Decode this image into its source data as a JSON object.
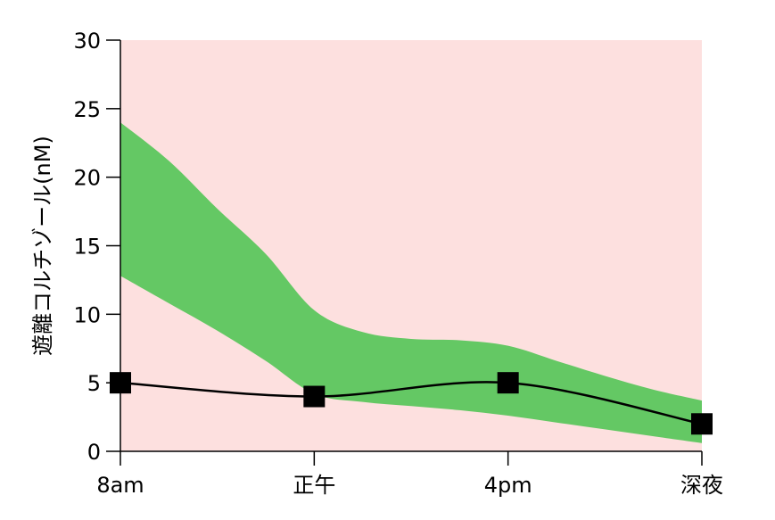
{
  "chart_data": {
    "type": "line",
    "title": "",
    "xlabel": "",
    "ylabel": "遊離コルチゾール(nM)",
    "categories": [
      "8am",
      "正午",
      "4pm",
      "深夜"
    ],
    "ylim": [
      0,
      30
    ],
    "yticks": [
      0,
      5,
      10,
      15,
      20,
      25,
      30
    ],
    "grid": false,
    "series": [
      {
        "values": [
          5,
          4,
          5,
          2
        ],
        "color": "#000000",
        "marker": "square"
      }
    ],
    "band": {
      "x": [
        0,
        0.25,
        0.5,
        0.75,
        1,
        1.25,
        1.5,
        1.75,
        2,
        2.25,
        2.5,
        2.75,
        3
      ],
      "upper": [
        24,
        21.2,
        17.7,
        14.4,
        10.3,
        8.7,
        8.2,
        8.1,
        7.7,
        6.6,
        5.5,
        4.5,
        3.7
      ],
      "lower": [
        12.8,
        10.8,
        8.8,
        6.6,
        4.2,
        3.6,
        3.3,
        3.0,
        2.6,
        2.1,
        1.6,
        1.1,
        0.6
      ],
      "color": "#64c864"
    },
    "background_color": "#fde0df"
  }
}
